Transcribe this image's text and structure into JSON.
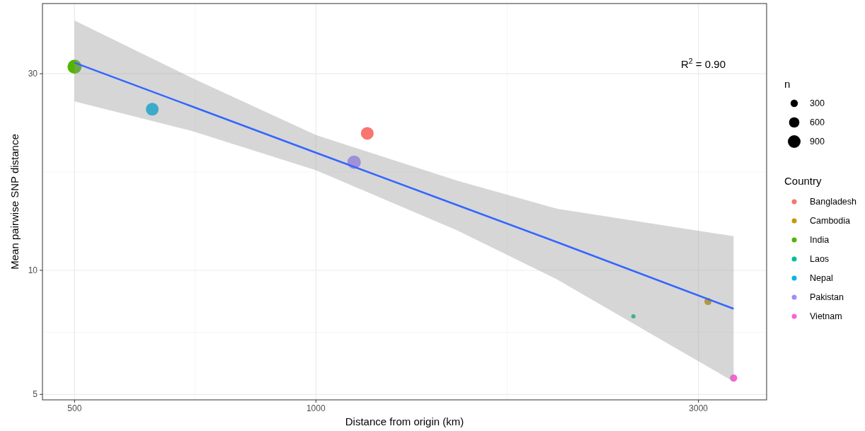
{
  "chart_data": {
    "type": "scatter",
    "xlabel": "Distance from origin (km)",
    "ylabel": "Mean pairwise SNP distance",
    "legend_title": "Country",
    "log": "xy",
    "xlim": [
      456,
      3649
    ],
    "ylim": [
      4.85,
      44.4
    ],
    "xticks": [
      500,
      1000,
      3000
    ],
    "yticks": [
      5,
      10,
      30
    ],
    "grid": true,
    "legend": "right",
    "marker": "circle",
    "size_legend": [
      300,
      600,
      900
    ],
    "annotations": [
      "R$^{2}$ = 0.90",
      "n"
    ],
    "series": [
      {
        "type": "line",
        "marker": "none",
        "color": "#3366ff",
        "x": [
          500,
          700,
          1000,
          1500,
          2000,
          3319
        ],
        "values": [
          31.9,
          25.0,
          19.3,
          14.4,
          11.7,
          8.07
        ],
        "lower": [
          25.7,
          21.8,
          17.5,
          12.5,
          9.5,
          5.37
        ],
        "upper": [
          40.4,
          29.3,
          21.3,
          16.5,
          14.1,
          12.1
        ]
      },
      {
        "name": "Bangladesh",
        "color": "#F8766D",
        "x": [
          1159
        ],
        "values": [
          21.5
        ],
        "sizes": [
          900
        ]
      },
      {
        "name": "Cambodia",
        "color": "#C49A00",
        "x": [
          3083
        ],
        "values": [
          8.4
        ],
        "sizes": [
          280
        ]
      },
      {
        "name": "India",
        "color": "#53B400",
        "x": [
          500
        ],
        "values": [
          31.2
        ],
        "sizes": [
          1100
        ]
      },
      {
        "name": "Laos",
        "color": "#00C094",
        "x": [
          2489
        ],
        "values": [
          7.73
        ],
        "sizes": [
          100
        ]
      },
      {
        "name": "Nepal",
        "color": "#00B6EB",
        "x": [
          625
        ],
        "values": [
          24.6
        ],
        "sizes": [
          900
        ]
      },
      {
        "name": "Pakistan",
        "color": "#A58AFF",
        "x": [
          1116
        ],
        "values": [
          18.3
        ],
        "sizes": [
          1000
        ]
      },
      {
        "name": "Vietnam",
        "color": "#FB61D7",
        "x": [
          3319
        ],
        "values": [
          5.48
        ],
        "sizes": [
          300
        ]
      }
    ]
  }
}
